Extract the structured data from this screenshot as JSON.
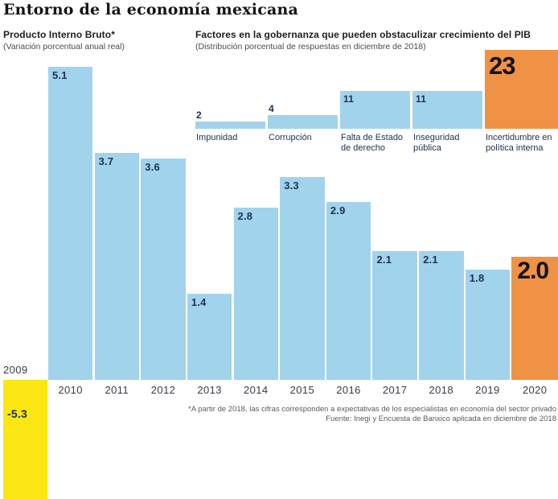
{
  "title": "Entorno de la economía mexicana",
  "colors": {
    "bar_blue": "#a2d3ec",
    "bar_orange": "#ef9245",
    "bar_yellow": "#fbe713",
    "value_navy": "#1b3156",
    "big_number_black": "#121212",
    "axis_text": "#373c45",
    "footnote_gray": "#5a5a5d"
  },
  "chart_data": [
    {
      "type": "bar",
      "title": "Producto Interno Bruto*",
      "subtitle": "(Variación porcentual anual real)",
      "categories": [
        "2009",
        "2010",
        "2011",
        "2012",
        "2013",
        "2014",
        "2015",
        "2016",
        "2017",
        "2018",
        "2019",
        "2020"
      ],
      "values": [
        -5.3,
        5.1,
        3.7,
        3.6,
        1.4,
        2.8,
        3.3,
        2.9,
        2.1,
        2.1,
        1.8,
        2.0
      ],
      "value_labels": [
        "-5.3",
        "5.1",
        "3.7",
        "3.6",
        "1.4",
        "2.8",
        "3.3",
        "2.9",
        "2.1",
        "2.1",
        "1.8",
        "2.0"
      ],
      "ylim": [
        -5.3,
        5.1
      ],
      "grid": false,
      "legend": "none",
      "bar_color_default": "#a2d3ec",
      "bar_color_negative": "#fbe713",
      "bar_color_highlight": "#ef9245",
      "highlighted_category": "2020",
      "negative_category": "2009"
    },
    {
      "type": "bar",
      "title": "Factores en la gobernanza que pueden obstaculizar crecimiento del PIB",
      "subtitle": "(Distribución porcentual de respuestas en diciembre de 2018)",
      "categories": [
        "Impunidad",
        "Corrupción",
        "Falta de Estado de derecho",
        "Inseguridad pública",
        "Incertidumbre en política interna"
      ],
      "values": [
        2,
        4,
        11,
        11,
        23
      ],
      "value_labels": [
        "2",
        "4",
        "11",
        "11",
        "23"
      ],
      "ylim": [
        0,
        23
      ],
      "grid": false,
      "legend": "none",
      "bar_color_default": "#a2d3ec",
      "bar_color_highlight": "#ef9245",
      "highlighted_category": "Incertidumbre en política interna"
    }
  ],
  "footnote": {
    "line1": "*A partir de 2018, las cifras corresponden a expectativas de los especialistas en economía del sector privado",
    "line2": "Fuente: Inegi y Encuesta de Banxico aplicada en diciembre de 2018"
  }
}
